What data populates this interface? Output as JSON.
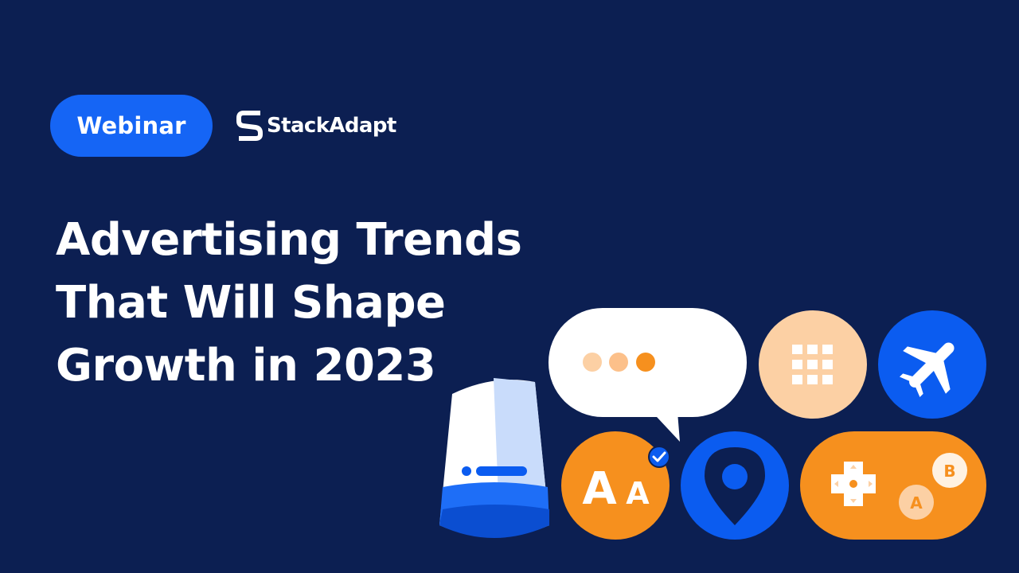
{
  "badge": {
    "label": "Webinar",
    "color": "#1565f5"
  },
  "brand": {
    "name": "StackAdapt",
    "logo_icon": "stackadapt-s-logo-icon"
  },
  "headline": {
    "lines": [
      "Advertising Trends",
      "That Will Shape",
      "Growth in 2023"
    ]
  },
  "illustration": {
    "tiles": {
      "game_a": "A",
      "game_b": "B",
      "font_large": "A",
      "font_small": "A"
    },
    "colors": {
      "background": "#0c1f52",
      "blue": "#0b5cf0",
      "orange": "#f6901e",
      "peach": "#fcd0a4",
      "white": "#ffffff"
    }
  }
}
